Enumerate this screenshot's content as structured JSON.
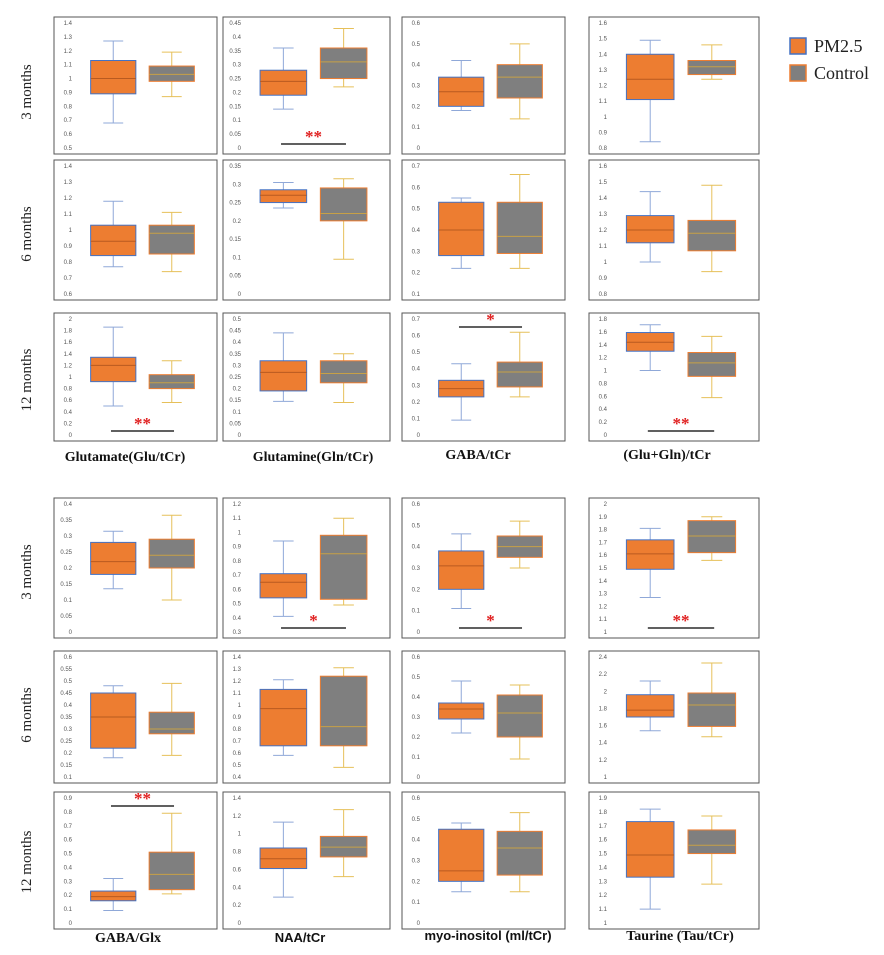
{
  "legend": [
    {
      "label": "PM2.5",
      "fill": "#ED7D31",
      "stroke": "#4472C4"
    },
    {
      "label": "Control",
      "fill": "#7F7F7F",
      "stroke": "#ED7D31"
    }
  ],
  "blocks": [
    {
      "row_labels": [
        "3 months",
        "6 months",
        "12 months"
      ],
      "col_labels": [
        "Glutamate(Glu/tCr)",
        "Glutamine(Gln/tCr)",
        "GABA/tCr",
        "(Glu+Gln)/tCr"
      ]
    },
    {
      "row_labels": [
        "3 months",
        "6 months",
        "12 months"
      ],
      "col_labels": [
        "GABA/Glx",
        "NAA/tCr",
        "myo-inositol (ml/tCr)",
        "Taurine (Tau/tCr)"
      ]
    }
  ],
  "chart_data": [
    {
      "type": "box",
      "metric": "Glutamate(Glu/tCr)",
      "timepoint": "3 months",
      "ylim": [
        0.5,
        1.4
      ],
      "yticks": [
        "0.5",
        "0.6",
        "0.7",
        "0.8",
        "0.9",
        "1",
        "1.1",
        "1.2",
        "1.3",
        "1.4"
      ],
      "series": [
        {
          "name": "PM2.5",
          "min": 0.68,
          "q1": 0.89,
          "median": 1.0,
          "q3": 1.13,
          "max": 1.27
        },
        {
          "name": "Control",
          "min": 0.87,
          "q1": 0.98,
          "median": 1.03,
          "q3": 1.09,
          "max": 1.19
        }
      ],
      "significance": ""
    },
    {
      "type": "box",
      "metric": "Glutamine(Gln/tCr)",
      "timepoint": "3 months",
      "ylim": [
        0,
        0.45
      ],
      "yticks": [
        "0",
        "0.05",
        "0.1",
        "0.15",
        "0.2",
        "0.25",
        "0.3",
        "0.35",
        "0.4",
        "0.45"
      ],
      "series": [
        {
          "name": "PM2.5",
          "min": 0.14,
          "q1": 0.19,
          "median": 0.24,
          "q3": 0.28,
          "max": 0.36
        },
        {
          "name": "Control",
          "min": 0.22,
          "q1": 0.25,
          "median": 0.31,
          "q3": 0.36,
          "max": 0.43
        }
      ],
      "significance": "**",
      "sig_pos": "bottom"
    },
    {
      "type": "box",
      "metric": "GABA/tCr",
      "timepoint": "3 months",
      "ylim": [
        0,
        0.6
      ],
      "yticks": [
        "0",
        "0.1",
        "0.2",
        "0.3",
        "0.4",
        "0.5",
        "0.6"
      ],
      "series": [
        {
          "name": "PM2.5",
          "min": 0.18,
          "q1": 0.2,
          "median": 0.27,
          "q3": 0.34,
          "max": 0.42
        },
        {
          "name": "Control",
          "min": 0.14,
          "q1": 0.24,
          "median": 0.34,
          "q3": 0.4,
          "max": 0.5
        }
      ],
      "significance": ""
    },
    {
      "type": "box",
      "metric": "(Glu+Gln)/tCr",
      "timepoint": "3 months",
      "ylim": [
        0.8,
        1.6
      ],
      "yticks": [
        "0.8",
        "0.9",
        "1",
        "1.1",
        "1.2",
        "1.3",
        "1.4",
        "1.5",
        "1.6"
      ],
      "series": [
        {
          "name": "PM2.5",
          "min": 0.84,
          "q1": 1.11,
          "median": 1.24,
          "q3": 1.4,
          "max": 1.49
        },
        {
          "name": "Control",
          "min": 1.24,
          "q1": 1.27,
          "median": 1.32,
          "q3": 1.36,
          "max": 1.46
        }
      ],
      "significance": ""
    },
    {
      "type": "box",
      "metric": "Glutamate(Glu/tCr)",
      "timepoint": "6 months",
      "ylim": [
        0.6,
        1.4
      ],
      "yticks": [
        "0.6",
        "0.7",
        "0.8",
        "0.9",
        "1",
        "1.1",
        "1.2",
        "1.3",
        "1.4"
      ],
      "series": [
        {
          "name": "PM2.5",
          "min": 0.77,
          "q1": 0.84,
          "median": 0.93,
          "q3": 1.03,
          "max": 1.18
        },
        {
          "name": "Control",
          "min": 0.74,
          "q1": 0.85,
          "median": 0.98,
          "q3": 1.03,
          "max": 1.11
        }
      ],
      "significance": ""
    },
    {
      "type": "box",
      "metric": "Glutamine(Gln/tCr)",
      "timepoint": "6 months",
      "ylim": [
        0,
        0.35
      ],
      "yticks": [
        "0",
        "0.05",
        "0.1",
        "0.15",
        "0.2",
        "0.25",
        "0.3",
        "0.35"
      ],
      "series": [
        {
          "name": "PM2.5",
          "min": 0.235,
          "q1": 0.25,
          "median": 0.27,
          "q3": 0.285,
          "max": 0.305
        },
        {
          "name": "Control",
          "min": 0.095,
          "q1": 0.2,
          "median": 0.22,
          "q3": 0.29,
          "max": 0.315
        }
      ],
      "significance": ""
    },
    {
      "type": "box",
      "metric": "GABA/tCr",
      "timepoint": "6 months",
      "ylim": [
        0.1,
        0.7
      ],
      "yticks": [
        "0.1",
        "0.2",
        "0.3",
        "0.4",
        "0.5",
        "0.6",
        "0.7"
      ],
      "series": [
        {
          "name": "PM2.5",
          "min": 0.22,
          "q1": 0.28,
          "median": 0.4,
          "q3": 0.53,
          "max": 0.55
        },
        {
          "name": "Control",
          "min": 0.22,
          "q1": 0.29,
          "median": 0.37,
          "q3": 0.53,
          "max": 0.66
        }
      ],
      "significance": ""
    },
    {
      "type": "box",
      "metric": "(Glu+Gln)/tCr",
      "timepoint": "6 months",
      "ylim": [
        0.8,
        1.6
      ],
      "yticks": [
        "0.8",
        "0.9",
        "1",
        "1.1",
        "1.2",
        "1.3",
        "1.4",
        "1.5",
        "1.6"
      ],
      "series": [
        {
          "name": "PM2.5",
          "min": 1.0,
          "q1": 1.12,
          "median": 1.2,
          "q3": 1.29,
          "max": 1.44
        },
        {
          "name": "Control",
          "min": 0.94,
          "q1": 1.07,
          "median": 1.18,
          "q3": 1.26,
          "max": 1.48
        }
      ],
      "significance": ""
    },
    {
      "type": "box",
      "metric": "Glutamate(Glu/tCr)",
      "timepoint": "12 months",
      "ylim": [
        0,
        2
      ],
      "yticks": [
        "0",
        "0.2",
        "0.4",
        "0.6",
        "0.8",
        "1",
        "1.2",
        "1.4",
        "1.6",
        "1.8",
        "2"
      ],
      "series": [
        {
          "name": "PM2.5",
          "min": 0.5,
          "q1": 0.92,
          "median": 1.2,
          "q3": 1.34,
          "max": 1.86
        },
        {
          "name": "Control",
          "min": 0.56,
          "q1": 0.8,
          "median": 0.9,
          "q3": 1.04,
          "max": 1.28
        }
      ],
      "significance": "**",
      "sig_pos": "bottom"
    },
    {
      "type": "box",
      "metric": "Glutamine(Gln/tCr)",
      "timepoint": "12 months",
      "ylim": [
        0,
        0.5
      ],
      "yticks": [
        "0",
        "0.05",
        "0.1",
        "0.15",
        "0.2",
        "0.25",
        "0.3",
        "0.35",
        "0.4",
        "0.45",
        "0.5"
      ],
      "series": [
        {
          "name": "PM2.5",
          "min": 0.145,
          "q1": 0.19,
          "median": 0.27,
          "q3": 0.32,
          "max": 0.44
        },
        {
          "name": "Control",
          "min": 0.14,
          "q1": 0.225,
          "median": 0.265,
          "q3": 0.32,
          "max": 0.35
        }
      ],
      "significance": ""
    },
    {
      "type": "box",
      "metric": "GABA/tCr",
      "timepoint": "12 months",
      "ylim": [
        0,
        0.7
      ],
      "yticks": [
        "0",
        "0.1",
        "0.2",
        "0.3",
        "0.4",
        "0.5",
        "0.6",
        "0.7"
      ],
      "series": [
        {
          "name": "PM2.5",
          "min": 0.09,
          "q1": 0.23,
          "median": 0.28,
          "q3": 0.33,
          "max": 0.43
        },
        {
          "name": "Control",
          "min": 0.23,
          "q1": 0.29,
          "median": 0.38,
          "q3": 0.44,
          "max": 0.62
        }
      ],
      "significance": "*",
      "sig_pos": "top"
    },
    {
      "type": "box",
      "metric": "(Glu+Gln)/tCr",
      "timepoint": "12 months",
      "ylim": [
        0,
        1.8
      ],
      "yticks": [
        "0",
        "0.2",
        "0.4",
        "0.6",
        "0.8",
        "1",
        "1.2",
        "1.4",
        "1.6",
        "1.8"
      ],
      "series": [
        {
          "name": "PM2.5",
          "min": 1.0,
          "q1": 1.3,
          "median": 1.44,
          "q3": 1.59,
          "max": 1.71
        },
        {
          "name": "Control",
          "min": 0.58,
          "q1": 0.91,
          "median": 1.12,
          "q3": 1.28,
          "max": 1.53
        }
      ],
      "significance": "**",
      "sig_pos": "bottom"
    },
    {
      "type": "box",
      "metric": "GABA/Glx",
      "timepoint": "3 months",
      "ylim": [
        0,
        0.4
      ],
      "yticks": [
        "0",
        "0.05",
        "0.1",
        "0.15",
        "0.2",
        "0.25",
        "0.3",
        "0.35",
        "0.4"
      ],
      "series": [
        {
          "name": "PM2.5",
          "min": 0.135,
          "q1": 0.18,
          "median": 0.22,
          "q3": 0.28,
          "max": 0.315
        },
        {
          "name": "Control",
          "min": 0.1,
          "q1": 0.2,
          "median": 0.24,
          "q3": 0.29,
          "max": 0.365
        }
      ],
      "significance": ""
    },
    {
      "type": "box",
      "metric": "NAA/tCr",
      "timepoint": "3 months",
      "ylim": [
        0.3,
        1.2
      ],
      "yticks": [
        "0.3",
        "0.4",
        "0.5",
        "0.6",
        "0.7",
        "0.8",
        "0.9",
        "1",
        "1.1",
        "1.2"
      ],
      "series": [
        {
          "name": "PM2.5",
          "min": 0.41,
          "q1": 0.54,
          "median": 0.65,
          "q3": 0.71,
          "max": 0.94
        },
        {
          "name": "Control",
          "min": 0.49,
          "q1": 0.53,
          "median": 0.85,
          "q3": 0.98,
          "max": 1.1
        }
      ],
      "significance": "*",
      "sig_pos": "bottom"
    },
    {
      "type": "box",
      "metric": "myo-inositol (ml/tCr)",
      "timepoint": "3 months",
      "ylim": [
        0,
        0.6
      ],
      "yticks": [
        "0",
        "0.1",
        "0.2",
        "0.3",
        "0.4",
        "0.5",
        "0.6"
      ],
      "series": [
        {
          "name": "PM2.5",
          "min": 0.11,
          "q1": 0.2,
          "median": 0.31,
          "q3": 0.38,
          "max": 0.46
        },
        {
          "name": "Control",
          "min": 0.3,
          "q1": 0.35,
          "median": 0.4,
          "q3": 0.45,
          "max": 0.52
        }
      ],
      "significance": "*",
      "sig_pos": "bottom"
    },
    {
      "type": "box",
      "metric": "Taurine (Tau/tCr)",
      "timepoint": "3 months",
      "ylim": [
        1,
        2
      ],
      "yticks": [
        "1",
        "1.1",
        "1.2",
        "1.3",
        "1.4",
        "1.5",
        "1.6",
        "1.7",
        "1.8",
        "1.9",
        "2"
      ],
      "series": [
        {
          "name": "PM2.5",
          "min": 1.27,
          "q1": 1.49,
          "median": 1.61,
          "q3": 1.72,
          "max": 1.81
        },
        {
          "name": "Control",
          "min": 1.56,
          "q1": 1.62,
          "median": 1.75,
          "q3": 1.87,
          "max": 1.9
        }
      ],
      "significance": "**",
      "sig_pos": "bottom"
    },
    {
      "type": "box",
      "metric": "GABA/Glx",
      "timepoint": "6 months",
      "ylim": [
        0.1,
        0.6
      ],
      "yticks": [
        "0.1",
        "0.15",
        "0.2",
        "0.25",
        "0.3",
        "0.35",
        "0.4",
        "0.45",
        "0.5",
        "0.55",
        "0.6"
      ],
      "series": [
        {
          "name": "PM2.5",
          "min": 0.18,
          "q1": 0.22,
          "median": 0.35,
          "q3": 0.45,
          "max": 0.48
        },
        {
          "name": "Control",
          "min": 0.19,
          "q1": 0.28,
          "median": 0.3,
          "q3": 0.37,
          "max": 0.49
        }
      ],
      "significance": ""
    },
    {
      "type": "box",
      "metric": "NAA/tCr",
      "timepoint": "6 months",
      "ylim": [
        0.4,
        1.4
      ],
      "yticks": [
        "0.4",
        "0.5",
        "0.6",
        "0.7",
        "0.8",
        "0.9",
        "1",
        "1.1",
        "1.2",
        "1.3",
        "1.4"
      ],
      "series": [
        {
          "name": "PM2.5",
          "min": 0.58,
          "q1": 0.66,
          "median": 0.97,
          "q3": 1.13,
          "max": 1.21
        },
        {
          "name": "Control",
          "min": 0.48,
          "q1": 0.66,
          "median": 0.82,
          "q3": 1.24,
          "max": 1.31
        }
      ],
      "significance": ""
    },
    {
      "type": "box",
      "metric": "myo-inositol (ml/tCr)",
      "timepoint": "6 months",
      "ylim": [
        0,
        0.6
      ],
      "yticks": [
        "0",
        "0.1",
        "0.2",
        "0.3",
        "0.4",
        "0.5",
        "0.6"
      ],
      "series": [
        {
          "name": "PM2.5",
          "min": 0.22,
          "q1": 0.29,
          "median": 0.34,
          "q3": 0.37,
          "max": 0.48
        },
        {
          "name": "Control",
          "min": 0.09,
          "q1": 0.2,
          "median": 0.32,
          "q3": 0.41,
          "max": 0.46
        }
      ],
      "significance": ""
    },
    {
      "type": "box",
      "metric": "Taurine (Tau/tCr)",
      "timepoint": "6 months",
      "ylim": [
        1,
        2.4
      ],
      "yticks": [
        "1",
        "1.2",
        "1.4",
        "1.6",
        "1.8",
        "2",
        "2.2",
        "2.4"
      ],
      "series": [
        {
          "name": "PM2.5",
          "min": 1.54,
          "q1": 1.7,
          "median": 1.78,
          "q3": 1.96,
          "max": 2.12
        },
        {
          "name": "Control",
          "min": 1.47,
          "q1": 1.59,
          "median": 1.84,
          "q3": 1.98,
          "max": 2.33
        }
      ],
      "significance": ""
    },
    {
      "type": "box",
      "metric": "GABA/Glx",
      "timepoint": "12 months",
      "ylim": [
        0,
        0.9
      ],
      "yticks": [
        "0",
        "0.1",
        "0.2",
        "0.3",
        "0.4",
        "0.5",
        "0.6",
        "0.7",
        "0.8",
        "0.9"
      ],
      "series": [
        {
          "name": "PM2.5",
          "min": 0.09,
          "q1": 0.16,
          "median": 0.19,
          "q3": 0.23,
          "max": 0.32
        },
        {
          "name": "Control",
          "min": 0.21,
          "q1": 0.24,
          "median": 0.35,
          "q3": 0.51,
          "max": 0.79
        }
      ],
      "significance": "**",
      "sig_pos": "top"
    },
    {
      "type": "box",
      "metric": "NAA/tCr",
      "timepoint": "12 months",
      "ylim": [
        0,
        1.4
      ],
      "yticks": [
        "0",
        "0.2",
        "0.4",
        "0.6",
        "0.8",
        "1",
        "1.2",
        "1.4"
      ],
      "series": [
        {
          "name": "PM2.5",
          "min": 0.29,
          "q1": 0.61,
          "median": 0.72,
          "q3": 0.84,
          "max": 1.13
        },
        {
          "name": "Control",
          "min": 0.52,
          "q1": 0.74,
          "median": 0.85,
          "q3": 0.97,
          "max": 1.27
        }
      ],
      "significance": ""
    },
    {
      "type": "box",
      "metric": "myo-inositol (ml/tCr)",
      "timepoint": "12 months",
      "ylim": [
        0,
        0.6
      ],
      "yticks": [
        "0",
        "0.1",
        "0.2",
        "0.3",
        "0.4",
        "0.5",
        "0.6"
      ],
      "series": [
        {
          "name": "PM2.5",
          "min": 0.15,
          "q1": 0.2,
          "median": 0.25,
          "q3": 0.45,
          "max": 0.48
        },
        {
          "name": "Control",
          "min": 0.15,
          "q1": 0.23,
          "median": 0.36,
          "q3": 0.44,
          "max": 0.53
        }
      ],
      "significance": ""
    },
    {
      "type": "box",
      "metric": "Taurine (Tau/tCr)",
      "timepoint": "12 months",
      "ylim": [
        1,
        1.9
      ],
      "yticks": [
        "1",
        "1.1",
        "1.2",
        "1.3",
        "1.4",
        "1.5",
        "1.6",
        "1.7",
        "1.8",
        "1.9"
      ],
      "series": [
        {
          "name": "PM2.5",
          "min": 1.1,
          "q1": 1.33,
          "median": 1.49,
          "q3": 1.73,
          "max": 1.82
        },
        {
          "name": "Control",
          "min": 1.28,
          "q1": 1.5,
          "median": 1.56,
          "q3": 1.67,
          "max": 1.77
        }
      ],
      "significance": ""
    }
  ]
}
